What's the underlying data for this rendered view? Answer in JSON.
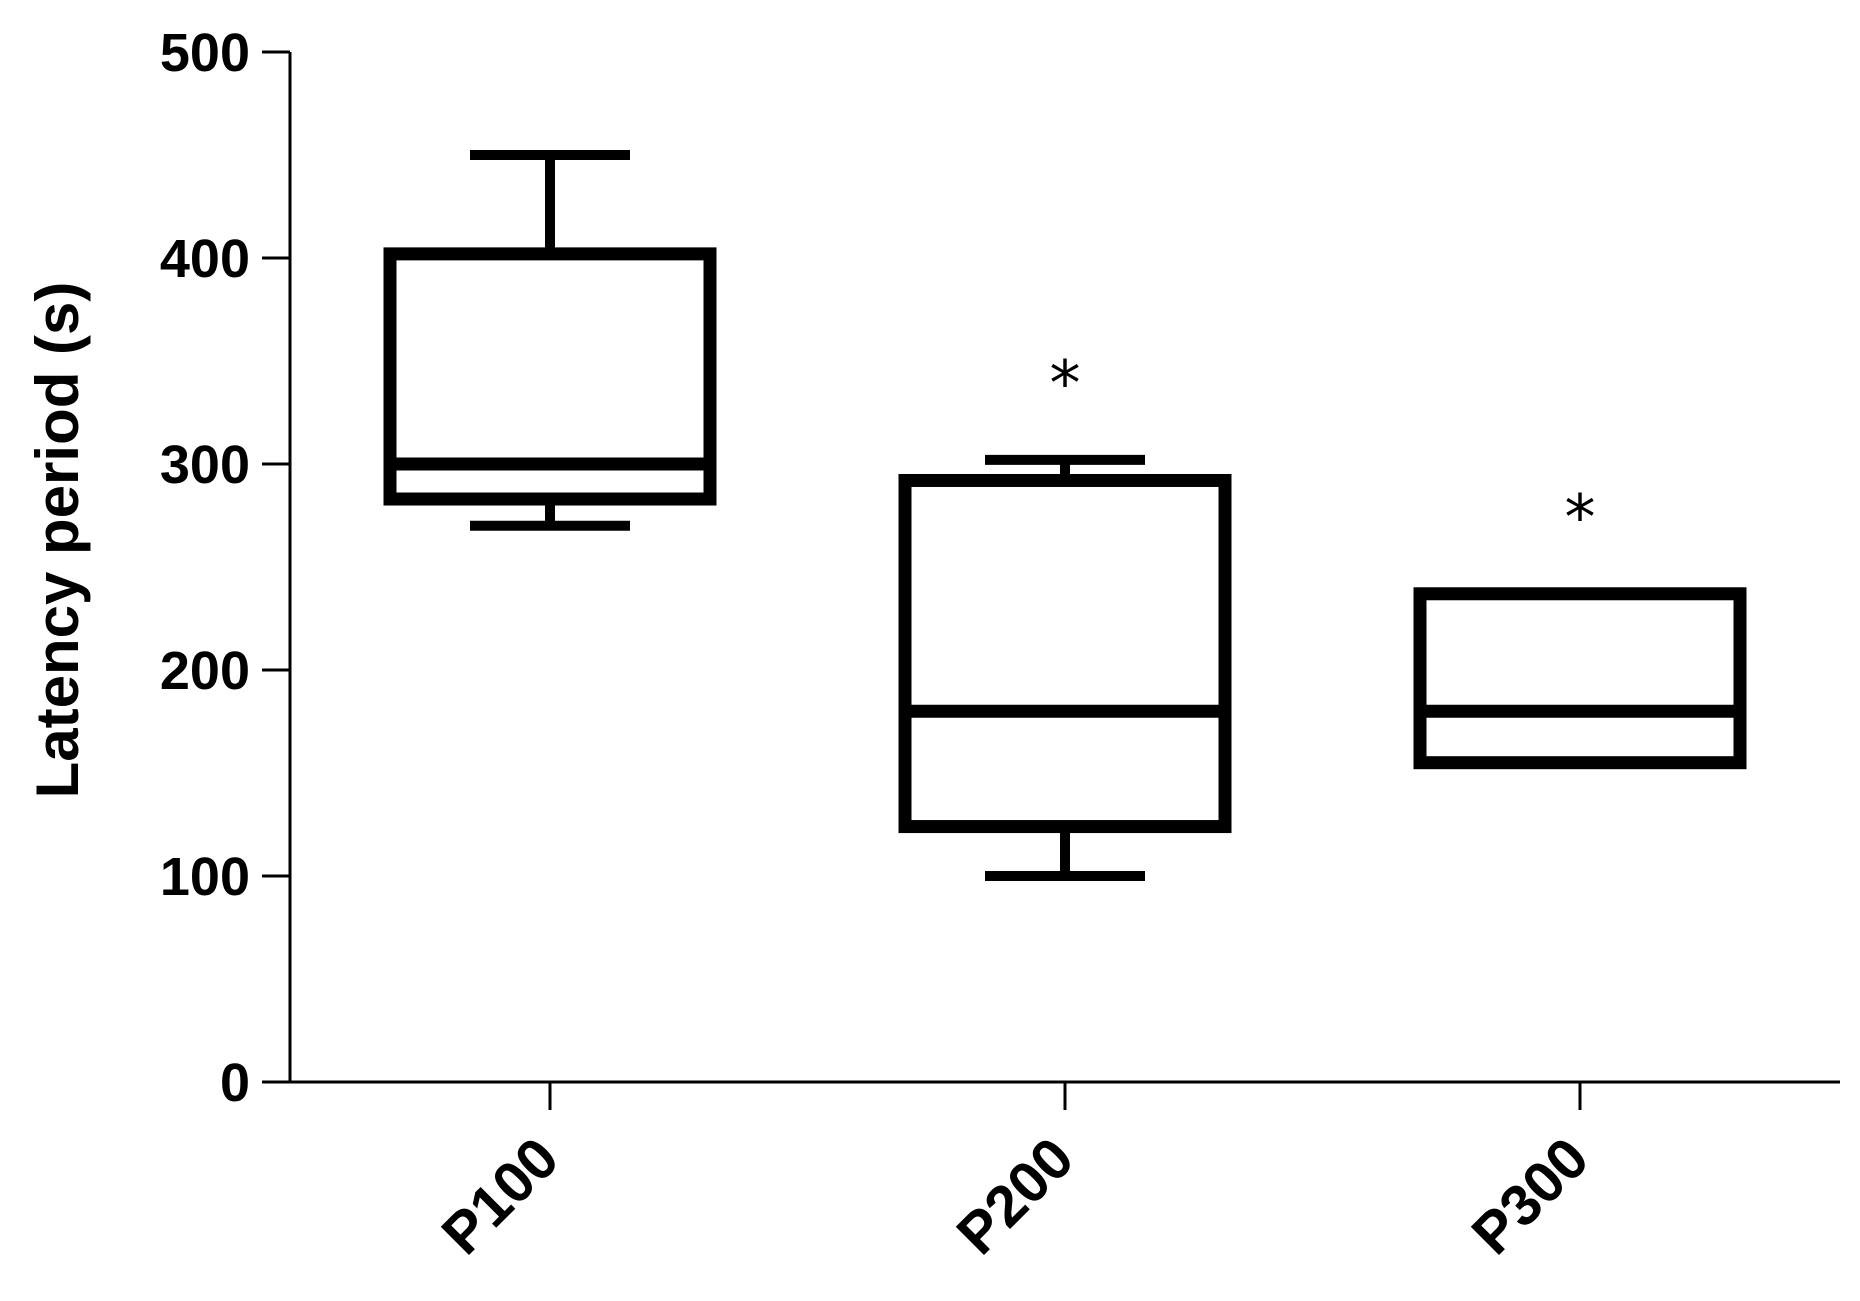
{
  "chart_data": {
    "type": "box",
    "ylabel": "Latency period  (s)",
    "xlabel": "",
    "ylim": [
      0,
      500
    ],
    "yticks": [
      0,
      100,
      200,
      300,
      400,
      500
    ],
    "ytick_labels": [
      "0",
      "100",
      "200",
      "300",
      "400",
      "500"
    ],
    "categories": [
      "P100",
      "P200",
      "P300"
    ],
    "boxes": [
      {
        "category": "P100",
        "min": 270,
        "q1": 283,
        "median": 300,
        "q3": 402,
        "max": 450,
        "annotation": ""
      },
      {
        "category": "P200",
        "min": 100,
        "q1": 124,
        "median": 180,
        "q3": 292,
        "max": 302,
        "annotation": "*"
      },
      {
        "category": "P300",
        "min": 155,
        "q1": 155,
        "median": 180,
        "q3": 237,
        "max": 237,
        "annotation": "*"
      }
    ],
    "grid": false,
    "legend": "none"
  }
}
